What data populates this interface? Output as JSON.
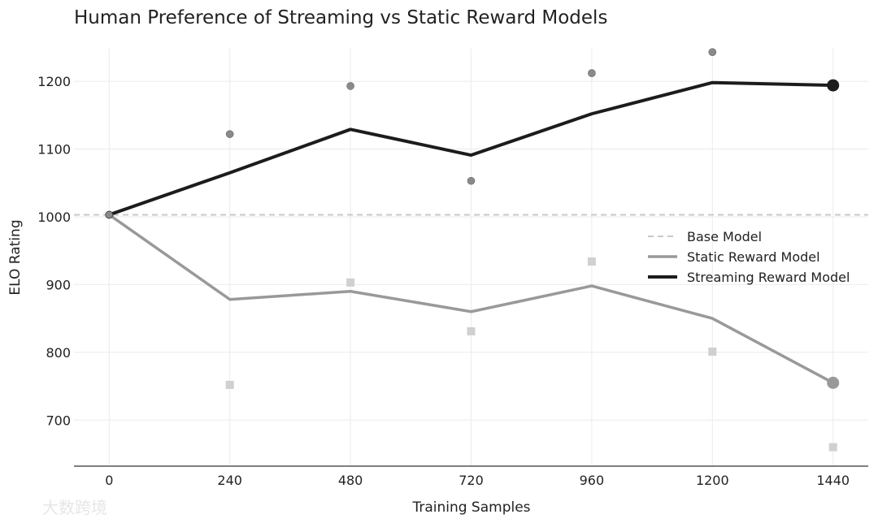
{
  "chart_data": {
    "type": "line",
    "title": "Human Preference of Streaming vs Static Reward Models",
    "xlabel": "Training Samples",
    "ylabel": "ELO Rating",
    "x": [
      0,
      240,
      480,
      720,
      960,
      1200,
      1440
    ],
    "xlim": [
      -70,
      1510
    ],
    "ylim": [
      632,
      1272
    ],
    "yticks": [
      700,
      800,
      900,
      1000,
      1100,
      1200
    ],
    "grid": true,
    "legend_position": "center-right",
    "baseline": {
      "name": "Base Model",
      "value": 1003,
      "color": "#c8c8c8"
    },
    "series": [
      {
        "name": "Static Reward Model",
        "color": "#999999",
        "line": [
          1003,
          878,
          890,
          860,
          898,
          850,
          755
        ],
        "points": [
          1003,
          752,
          903,
          831,
          934,
          801,
          660
        ],
        "point_color": "#d0d0d0"
      },
      {
        "name": "Streaming Reward Model",
        "color": "#1c1c1c",
        "line": [
          1003,
          1065,
          1129,
          1091,
          1152,
          1198,
          1194
        ],
        "points": [
          1003,
          1122,
          1193,
          1053,
          1212,
          1243,
          1194
        ],
        "point_color": "#8a8a8a"
      }
    ]
  },
  "watermark": "大数跨境"
}
